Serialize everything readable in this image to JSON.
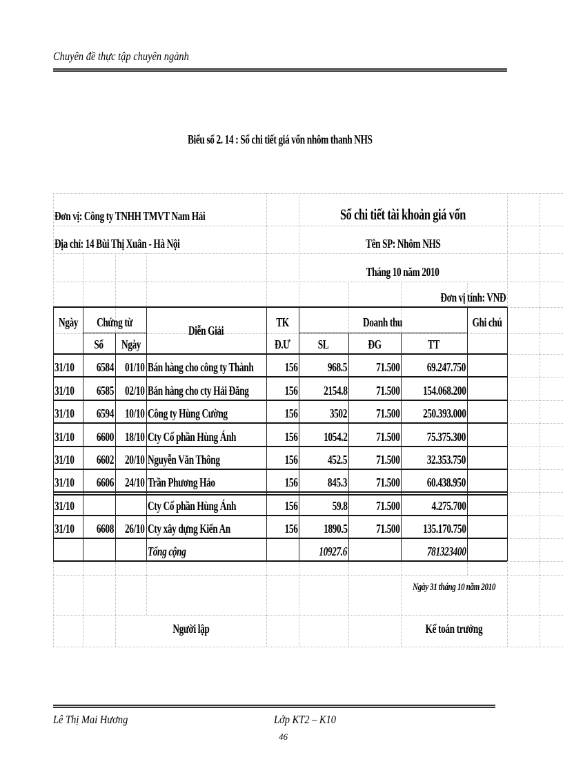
{
  "header": {
    "running_title": "Chuyên đề thực tập chuyên ngành"
  },
  "caption": "Biểu số 2. 14 : Sổ chi tiết giá vốn nhôm thanh NHS",
  "ledger": {
    "unit": "Đơn vị: Công  ty TNHH TMVT Nam Hải",
    "address": "Địa chỉ: 14 Bùi Thị Xuân - Hà Nội",
    "title": "Sổ chi tiết tài khoản giá vốn",
    "product": "Tên SP: Nhôm NHS",
    "period": "Tháng 10 năm 2010",
    "currency": "Đơn vị tính: VNĐ",
    "columns": {
      "date": "Ngày",
      "voucher": "Chứng từ",
      "voucher_no": "Số",
      "voucher_date": "Ngày",
      "description": "Diễn Giải",
      "account_1": "TK",
      "account_2": "Đ.Ư",
      "revenue": "Doanh thu",
      "qty": "SL",
      "price": "ĐG",
      "amount": "TT",
      "note": "Ghi chú"
    },
    "rows": [
      {
        "date": "31/10",
        "no": "6584",
        "vdate": "01/10",
        "desc": "Bán hàng cho công ty Thành",
        "acc": "156",
        "qty": "968.5",
        "price": "71.500",
        "amount": "69.247.750"
      },
      {
        "date": "31/10",
        "no": "6585",
        "vdate": "02/10",
        "desc": "Bán hàng cho cty Hải Đăng",
        "acc": "156",
        "qty": "2154.8",
        "price": "71.500",
        "amount": "154.068.200"
      },
      {
        "date": "31/10",
        "no": "6594",
        "vdate": "10/10",
        "desc": "Công ty Hùng Cường",
        "acc": "156",
        "qty": "3502",
        "price": "71.500",
        "amount": "250.393.000"
      },
      {
        "date": "31/10",
        "no": "6600",
        "vdate": "18/10",
        "desc": "Cty Cổ phần Hùng Ánh",
        "acc": "156",
        "qty": "1054.2",
        "price": "71.500",
        "amount": "75.375.300"
      },
      {
        "date": "31/10",
        "no": "6602",
        "vdate": "20/10",
        "desc": "Nguyễn Văn Thông",
        "acc": "156",
        "qty": "452.5",
        "price": "71.500",
        "amount": "32.353.750"
      },
      {
        "date": "31/10",
        "no": "6606",
        "vdate": "24/10",
        "desc": "Trần Phương Hảo",
        "acc": "156",
        "qty": "845.3",
        "price": "71.500",
        "amount": "60.438.950"
      },
      {
        "date": "31/10",
        "no": "",
        "vdate": "",
        "desc": "Cty Cổ phần Hùng Ánh",
        "acc": "156",
        "qty": "59.8",
        "price": "71.500",
        "amount": "4.275.700"
      },
      {
        "date": "31/10",
        "no": "6608",
        "vdate": "26/10",
        "desc": "Cty xây dựng Kiến An",
        "acc": "156",
        "qty": "1890.5",
        "price": "71.500",
        "amount": "135.170.750"
      }
    ],
    "total": {
      "label": "Tổng cộng",
      "qty": "10927.6",
      "amount": "781323400"
    },
    "sign_date": "Ngày 31 tháng 10 năm 2010",
    "preparer": "Người lập",
    "chief_accountant": "Kế toán trưởng"
  },
  "footer": {
    "author": "Lê Thị Mai Hương",
    "class": "Lớp KT2 – K10",
    "page_number": "46"
  }
}
